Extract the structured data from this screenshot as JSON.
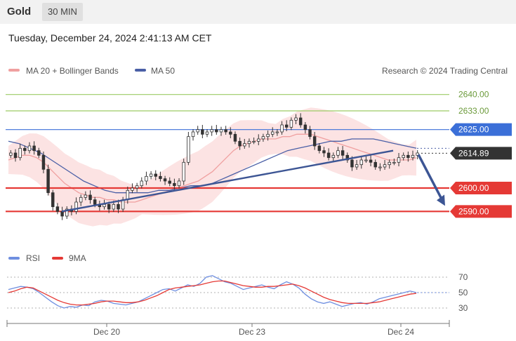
{
  "header": {
    "symbol": "Gold",
    "timeframe": "30 MIN",
    "datetime": "Tuesday, December 24, 2024 2:41:13 AM CET"
  },
  "legend": {
    "ma20_label": "MA 20 + Bollinger Bands",
    "ma50_label": "MA 50",
    "credit": "Research © 2024 Trading Central",
    "rsi_label": "RSI",
    "rsi_ma_label": "9MA"
  },
  "colors": {
    "candle": "#333333",
    "bollinger_fill": "#fbdcdc",
    "ma20": "#f0a0a0",
    "ma50": "#4a5fa6",
    "trendline": "#3c5594",
    "support": "#e53935",
    "resistance_blue": "#3b6fd8",
    "target_green": "#9ccc65",
    "last_price": "#333333",
    "rsi": "#6f8fe0",
    "rsi_ma": "#e53935"
  },
  "chart_data": [
    {
      "type": "line",
      "title": "",
      "x_tick_labels": [
        "Dec 20",
        "Dec 23",
        "Dec 24"
      ],
      "ylim": [
        2585,
        2645
      ],
      "levels": [
        {
          "value": 2640.0,
          "label": "2640.00",
          "kind": "target"
        },
        {
          "value": 2633.0,
          "label": "2633.00",
          "kind": "target"
        },
        {
          "value": 2625.0,
          "label": "2625.00",
          "kind": "pivot"
        },
        {
          "value": 2614.89,
          "label": "2614.89",
          "kind": "last"
        },
        {
          "value": 2600.0,
          "label": "2600.00",
          "kind": "support"
        },
        {
          "value": 2590.0,
          "label": "2590.00",
          "kind": "support"
        }
      ],
      "closes": [
        2615,
        2613,
        2617,
        2616,
        2618,
        2616,
        2614,
        2608,
        2598,
        2592,
        2590,
        2588,
        2591,
        2590,
        2594,
        2596,
        2597,
        2595,
        2593,
        2592,
        2593,
        2591,
        2593,
        2591,
        2595,
        2599,
        2600,
        2601,
        2603,
        2605,
        2606,
        2605,
        2604,
        2603,
        2602,
        2601,
        2603,
        2611,
        2622,
        2624,
        2625,
        2623,
        2624,
        2625,
        2624,
        2625,
        2624,
        2623,
        2620,
        2618,
        2619,
        2620,
        2620,
        2621,
        2622,
        2623,
        2624,
        2624,
        2627,
        2626,
        2629,
        2630,
        2627,
        2625,
        2622,
        2618,
        2616,
        2615,
        2613,
        2614,
        2616,
        2614,
        2612,
        2609,
        2610,
        2612,
        2612,
        2611,
        2609,
        2609,
        2610,
        2611,
        2611,
        2613,
        2614,
        2613,
        2614,
        2615
      ],
      "ma20": [
        2612,
        2613,
        2614,
        2614,
        2613,
        2611,
        2608,
        2605,
        2602,
        2600,
        2598,
        2597,
        2596,
        2596,
        2595,
        2595,
        2594,
        2594,
        2594,
        2595,
        2596,
        2597,
        2598,
        2599,
        2600,
        2601,
        2602,
        2603,
        2605,
        2607,
        2610,
        2613,
        2616,
        2618,
        2619,
        2620,
        2621,
        2621,
        2621,
        2622,
        2622,
        2623,
        2623,
        2623,
        2622,
        2621,
        2620,
        2619,
        2618,
        2617,
        2616,
        2615,
        2614,
        2613,
        2612,
        2612,
        2612,
        2612,
        2613
      ],
      "ma50": [
        2620,
        2619,
        2617,
        2615,
        2612,
        2609,
        2606,
        2603,
        2601,
        2599,
        2598,
        2598,
        2598,
        2598,
        2599,
        2599,
        2600,
        2601,
        2601,
        2602,
        2604,
        2606,
        2608,
        2610,
        2612,
        2614,
        2616,
        2617,
        2618,
        2619,
        2620,
        2620,
        2621,
        2621,
        2621,
        2620,
        2619,
        2618,
        2617
      ],
      "trendline": {
        "from": 2590,
        "to": 2616
      },
      "forecast_target": 2590.0,
      "last_price": 2614.89
    },
    {
      "type": "line",
      "title": "RSI",
      "ylim": [
        20,
        80
      ],
      "y_tick_labels": [
        "70",
        "50",
        "30"
      ],
      "series": [
        {
          "name": "RSI",
          "values": [
            54,
            56,
            58,
            57,
            55,
            50,
            44,
            38,
            33,
            30,
            32,
            31,
            34,
            33,
            38,
            40,
            39,
            36,
            35,
            34,
            36,
            38,
            42,
            46,
            50,
            54,
            55,
            52,
            56,
            60,
            58,
            62,
            70,
            72,
            68,
            64,
            62,
            58,
            54,
            56,
            58,
            60,
            57,
            55,
            60,
            64,
            61,
            56,
            48,
            42,
            38,
            36,
            38,
            35,
            32,
            34,
            36,
            37,
            35,
            38,
            42,
            44,
            46,
            48,
            50,
            52,
            50
          ]
        },
        {
          "name": "9MA",
          "values": [
            50,
            52,
            55,
            57,
            56,
            52,
            48,
            44,
            40,
            37,
            35,
            34,
            34,
            35,
            36,
            38,
            39,
            39,
            38,
            37,
            37,
            38,
            40,
            43,
            46,
            50,
            54,
            56,
            57,
            58,
            59,
            60,
            62,
            64,
            65,
            65,
            63,
            61,
            59,
            58,
            57,
            57,
            58,
            58,
            59,
            60,
            61,
            59,
            56,
            52,
            48,
            44,
            41,
            39,
            37,
            36,
            36,
            36,
            36,
            37,
            38,
            40,
            42,
            44,
            46,
            48,
            49
          ]
        }
      ],
      "last_value": 50
    }
  ]
}
